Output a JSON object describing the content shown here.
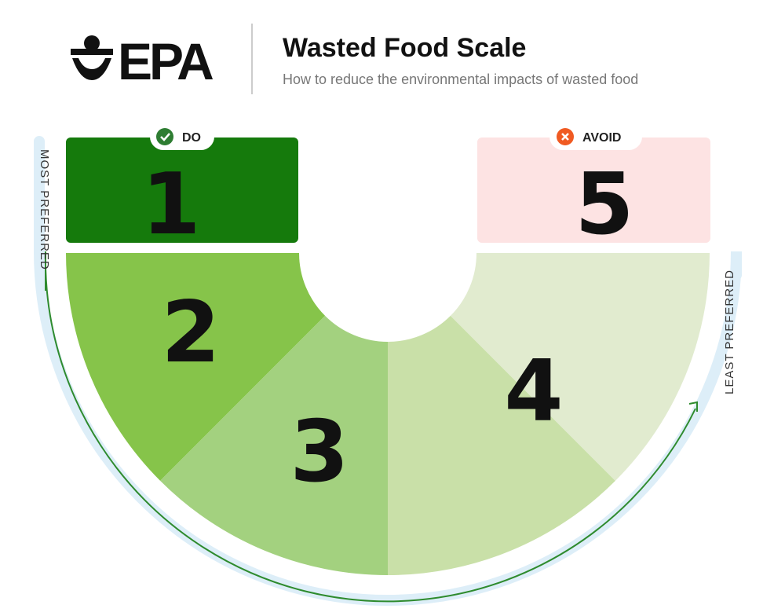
{
  "header": {
    "logo": "EPA",
    "title": "Wasted Food Scale",
    "subtitle": "How to reduce the environmental impacts of wasted food"
  },
  "badges": {
    "do": "DO",
    "avoid": "AVOID"
  },
  "levels": [
    "1",
    "2",
    "3",
    "4",
    "5"
  ],
  "axis": {
    "start": "MOST PREFERRED",
    "end": "LEAST PREFERRED"
  }
}
